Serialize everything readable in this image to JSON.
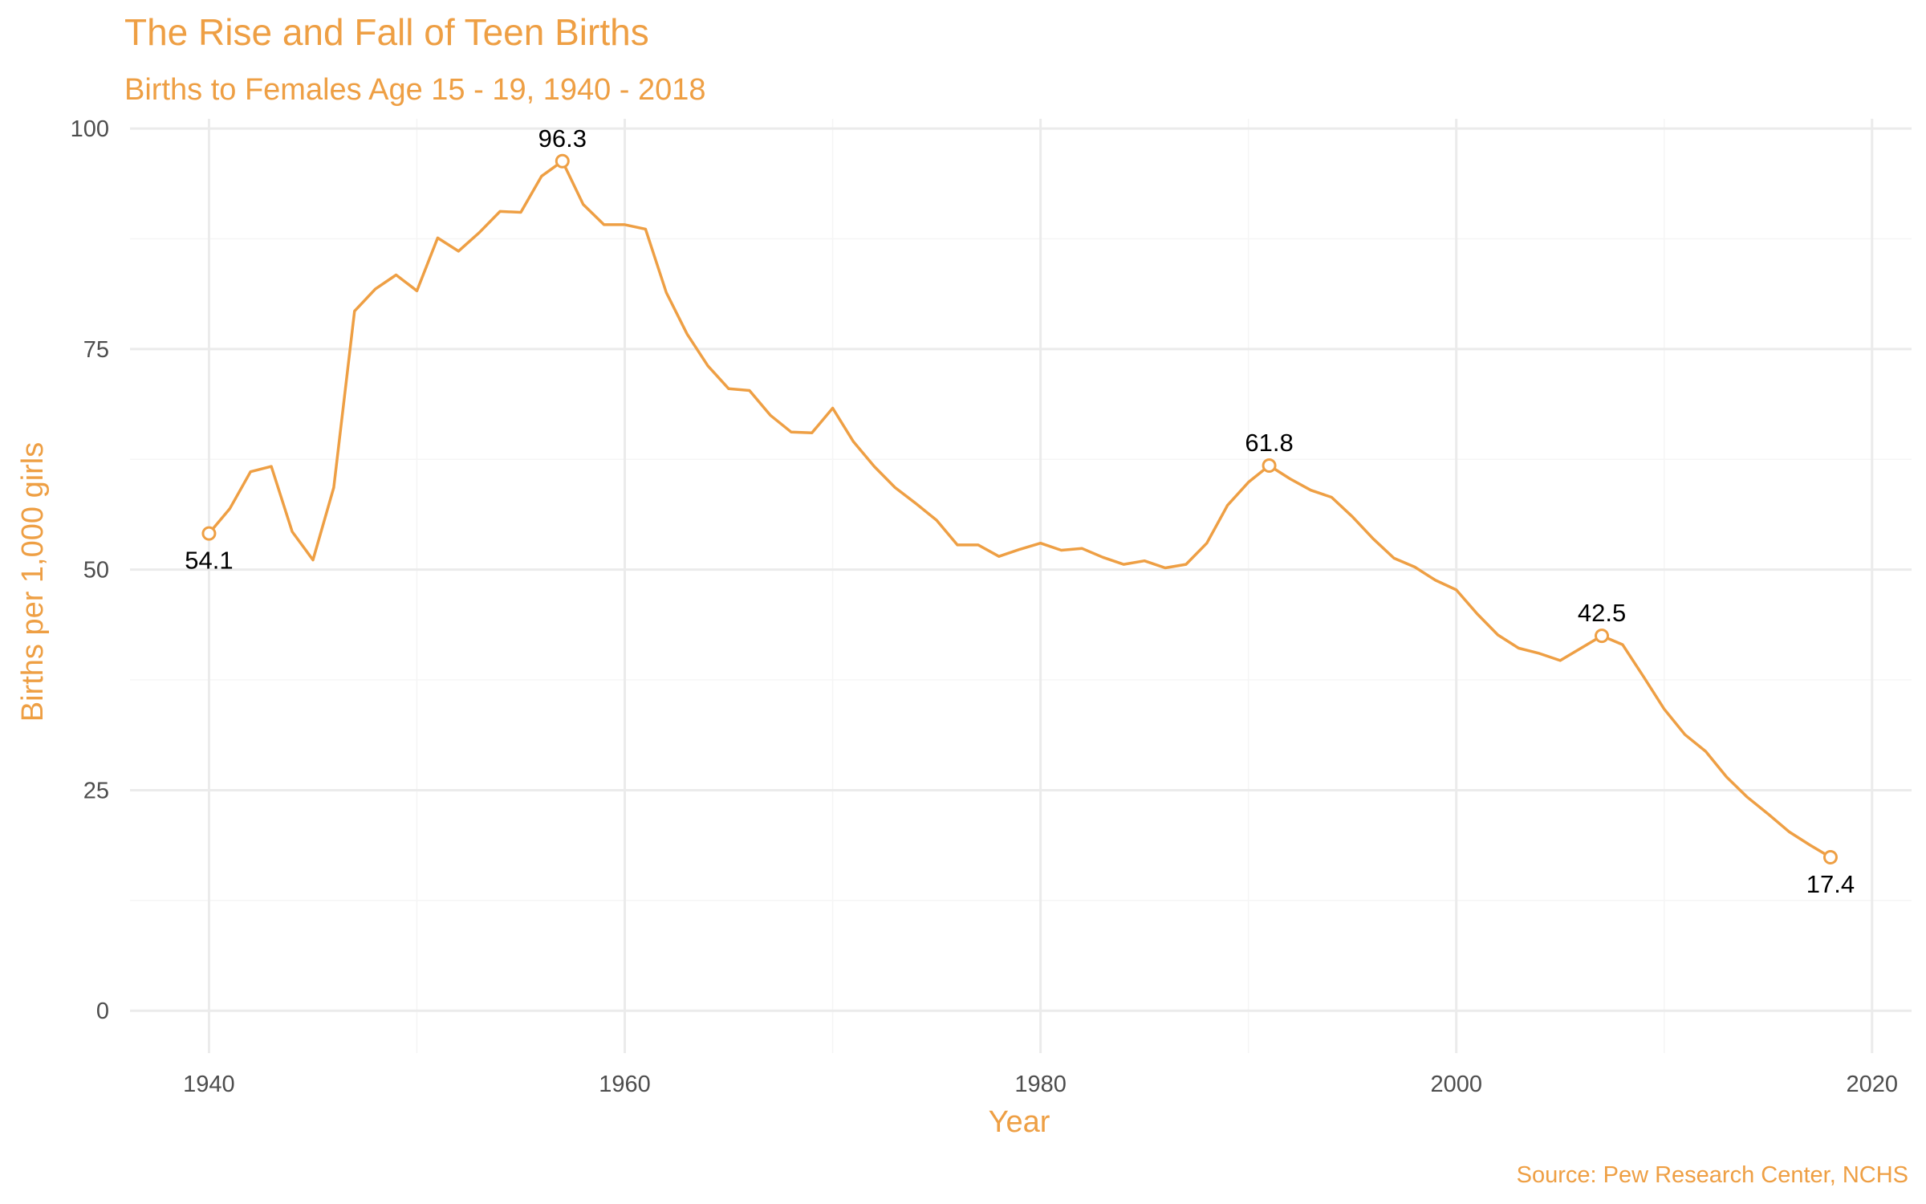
{
  "colors": {
    "accent": "#EE9F44",
    "text": "#000000",
    "tick": "#4D4D4D",
    "grid": "#EBEBEB"
  },
  "chart_data": {
    "type": "line",
    "title": "The Rise and Fall of Teen Births",
    "subtitle": "Births to Females Age 15 - 19, 1940 - 2018",
    "xlabel": "Year",
    "ylabel": "Births per 1,000 girls",
    "caption": "Source: Pew Research Center, NCHS",
    "xlim": [
      1936.2,
      2021.9
    ],
    "ylim": [
      -4.8,
      101.1
    ],
    "x_ticks": [
      1940,
      1960,
      1980,
      2000,
      2020
    ],
    "x_tick_labels": [
      "1940",
      "1960",
      "1980",
      "2000",
      "2020"
    ],
    "y_ticks": [
      0,
      25,
      50,
      75,
      100
    ],
    "y_tick_labels": [
      "0",
      "25",
      "50",
      "75",
      "100"
    ],
    "grid": true,
    "legend": "none",
    "series": [
      {
        "x": [
          1940,
          1941,
          1942,
          1943,
          1944,
          1945,
          1946,
          1947,
          1948,
          1949,
          1950,
          1951,
          1952,
          1953,
          1954,
          1955,
          1956,
          1957,
          1958,
          1959,
          1960,
          1961,
          1962,
          1963,
          1964,
          1965,
          1966,
          1967,
          1968,
          1969,
          1970,
          1971,
          1972,
          1973,
          1974,
          1975,
          1976,
          1977,
          1978,
          1979,
          1980,
          1981,
          1982,
          1983,
          1984,
          1985,
          1986,
          1987,
          1988,
          1989,
          1990,
          1991,
          1992,
          1993,
          1994,
          1995,
          1996,
          1997,
          1998,
          1999,
          2000,
          2001,
          2002,
          2003,
          2004,
          2005,
          2006,
          2007,
          2008,
          2009,
          2010,
          2011,
          2012,
          2013,
          2014,
          2015,
          2016,
          2017,
          2018
        ],
        "y": [
          54.1,
          56.9,
          61.1,
          61.7,
          54.3,
          51.1,
          59.3,
          79.3,
          81.8,
          83.4,
          81.6,
          87.6,
          86.1,
          88.2,
          90.6,
          90.5,
          94.6,
          96.3,
          91.4,
          89.1,
          89.1,
          88.6,
          81.4,
          76.7,
          73.1,
          70.5,
          70.3,
          67.5,
          65.6,
          65.5,
          68.3,
          64.5,
          61.7,
          59.3,
          57.5,
          55.6,
          52.8,
          52.8,
          51.5,
          52.3,
          53.0,
          52.2,
          52.4,
          51.4,
          50.6,
          51.0,
          50.2,
          50.6,
          53.0,
          57.3,
          59.9,
          61.8,
          60.3,
          59.0,
          58.2,
          56.0,
          53.5,
          51.3,
          50.3,
          48.8,
          47.7,
          45.0,
          42.6,
          41.1,
          40.5,
          39.7,
          41.1,
          42.5,
          41.5,
          37.9,
          34.2,
          31.3,
          29.4,
          26.5,
          24.2,
          22.3,
          20.3,
          18.8,
          17.4
        ]
      }
    ],
    "annotations": [
      {
        "x": 1940,
        "y": 54.1,
        "label": "54.1",
        "position": "below"
      },
      {
        "x": 1957,
        "y": 96.3,
        "label": "96.3",
        "position": "above"
      },
      {
        "x": 1991,
        "y": 61.8,
        "label": "61.8",
        "position": "above"
      },
      {
        "x": 2007,
        "y": 42.5,
        "label": "42.5",
        "position": "above"
      },
      {
        "x": 2018,
        "y": 17.4,
        "label": "17.4",
        "position": "below"
      }
    ]
  }
}
